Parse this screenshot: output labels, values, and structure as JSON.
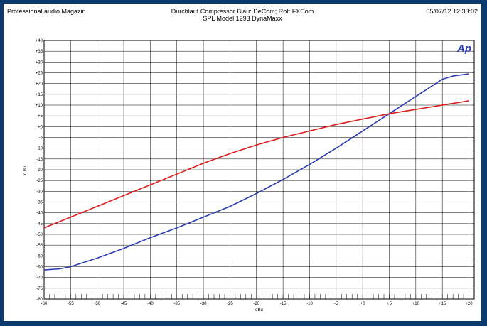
{
  "header": {
    "left": "Professional audio Magazin",
    "center_line1": "Durchlauf Compressor Blau: DeCom; Rot: FXCom",
    "center_line2": "SPL Model 1293 DynaMaxx",
    "right": "05/07/12 12:33:02"
  },
  "logo": "Ap",
  "chart_data": {
    "type": "line",
    "xlabel": "dBu",
    "ylabel": "d B u",
    "xlim": [
      -60,
      21
    ],
    "ylim": [
      -80,
      40
    ],
    "grid": true,
    "xticks": [
      "-60",
      "-55",
      "-50",
      "-45",
      "-40",
      "-35",
      "-30",
      "-25",
      "-20",
      "-15",
      "-10",
      "-5",
      "+0",
      "+5",
      "+10",
      "+15",
      "+20"
    ],
    "yticks": [
      "+40",
      "+35",
      "+30",
      "+25",
      "+20",
      "+15",
      "+10",
      "+5",
      "+0",
      "-5",
      "-10",
      "-15",
      "-20",
      "-25",
      "-30",
      "-35",
      "-40",
      "-45",
      "-50",
      "-55",
      "-60",
      "-65",
      "-70",
      "-75",
      "-80"
    ],
    "series": [
      {
        "color": "#2a3db0",
        "x": [
          -60,
          -57,
          -55,
          -50,
          -45,
          -40,
          -35,
          -30,
          -25,
          -20,
          -15,
          -10,
          -5,
          0,
          5,
          10,
          15,
          17,
          20
        ],
        "y": [
          -66.5,
          -66,
          -65,
          -61,
          -56.5,
          -51.5,
          -47,
          -42,
          -37,
          -31,
          -24.5,
          -17.5,
          -10,
          -2,
          6,
          14,
          22,
          23.5,
          24.5
        ]
      },
      {
        "color": "#dd1f1f",
        "x": [
          -60,
          -55,
          -50,
          -45,
          -40,
          -35,
          -30,
          -25,
          -20,
          -15,
          -10,
          -5,
          0,
          5,
          10,
          15,
          20
        ],
        "y": [
          -47,
          -42,
          -37,
          -32,
          -27,
          -22,
          -17,
          -12.5,
          -8.5,
          -5,
          -2,
          1,
          3.5,
          6,
          8,
          10,
          12
        ]
      }
    ]
  }
}
